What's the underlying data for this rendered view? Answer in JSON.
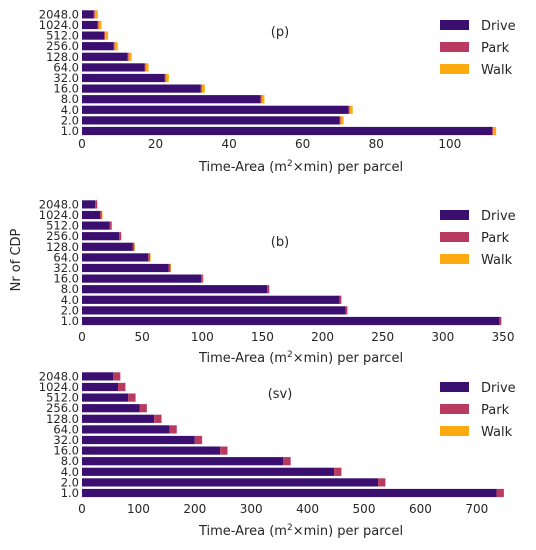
{
  "figure": {
    "ylabel": "Nr of CDP",
    "xlabel_prefix": "Time-Area (m",
    "xlabel_sup": "2",
    "xlabel_suffix": "×min) per parcel"
  },
  "colors": {
    "Drive": "#3b0f70",
    "Park": "#b83a60",
    "Walk": "#fcaa0f"
  },
  "chart_data": [
    {
      "type": "bar",
      "orientation": "horizontal",
      "stacked": true,
      "title": "(p)",
      "categories": [
        "1.0",
        "2.0",
        "4.0",
        "8.0",
        "16.0",
        "32.0",
        "64.0",
        "128.0",
        "256.0",
        "512.0",
        "1024.0",
        "2048.0"
      ],
      "series": [
        {
          "name": "Drive",
          "values": [
            111.5,
            70,
            72.5,
            48.5,
            32.3,
            22.5,
            17,
            12.4,
            8.6,
            6,
            4.2,
            3.2
          ]
        },
        {
          "name": "Park",
          "values": [
            0.3,
            0.3,
            0.3,
            0.3,
            0.3,
            0.3,
            0.3,
            0.3,
            0.3,
            0.3,
            0.3,
            0.3
          ]
        },
        {
          "name": "Walk",
          "values": [
            0.8,
            0.8,
            0.8,
            0.8,
            0.8,
            0.8,
            0.8,
            0.8,
            0.8,
            0.8,
            0.8,
            0.8
          ]
        }
      ],
      "xlim": [
        0,
        115
      ],
      "xticks": [
        0,
        20,
        40,
        60,
        80,
        100
      ],
      "xlabel": "Time-Area (m2×min) per parcel",
      "ylabel": "Nr of CDP",
      "legend": "top-right",
      "grid": false
    },
    {
      "type": "bar",
      "orientation": "horizontal",
      "stacked": true,
      "title": "(b)",
      "categories": [
        "1.0",
        "2.0",
        "4.0",
        "8.0",
        "16.0",
        "32.0",
        "64.0",
        "128.0",
        "256.0",
        "512.0",
        "1024.0",
        "2048.0"
      ],
      "series": [
        {
          "name": "Drive",
          "values": [
            347,
            219,
            214,
            154,
            99,
            72,
            55,
            42,
            31,
            23,
            15,
            11
          ]
        },
        {
          "name": "Park",
          "values": [
            1.5,
            1.5,
            1.5,
            1.5,
            1.5,
            1.5,
            1.5,
            1.5,
            1.5,
            1.5,
            1.5,
            1.5
          ]
        },
        {
          "name": "Walk",
          "values": [
            0.5,
            0.5,
            0.5,
            0.5,
            0.5,
            0.5,
            0.5,
            0.5,
            0.5,
            0.5,
            0.5,
            0.5
          ]
        }
      ],
      "xlim": [
        0,
        350
      ],
      "xticks": [
        0,
        50,
        100,
        150,
        200,
        250,
        300,
        350
      ],
      "xlabel": "Time-Area (m2×min) per parcel",
      "ylabel": "Nr of CDP",
      "legend": "top-right",
      "grid": false
    },
    {
      "type": "bar",
      "orientation": "horizontal",
      "stacked": true,
      "title": "(sv)",
      "categories": [
        "1.0",
        "2.0",
        "4.0",
        "8.0",
        "16.0",
        "32.0",
        "64.0",
        "128.0",
        "256.0",
        "512.0",
        "1024.0",
        "2048.0"
      ],
      "series": [
        {
          "name": "Drive",
          "values": [
            735,
            525,
            447,
            357,
            245,
            200,
            155,
            128,
            102,
            82,
            64,
            55
          ]
        },
        {
          "name": "Park",
          "values": [
            13,
            13,
            13,
            13,
            13,
            13,
            13,
            13,
            13,
            13,
            13,
            13
          ]
        },
        {
          "name": "Walk",
          "values": [
            0,
            0,
            0,
            0,
            0,
            0,
            0,
            0,
            0,
            0,
            0,
            0
          ]
        }
      ],
      "xlim": [
        0,
        750
      ],
      "xticks": [
        0,
        100,
        200,
        300,
        400,
        500,
        600,
        700
      ],
      "xlabel": "Time-Area (m2×min) per parcel",
      "ylabel": "Nr of CDP",
      "legend": "top-right",
      "grid": false
    }
  ]
}
